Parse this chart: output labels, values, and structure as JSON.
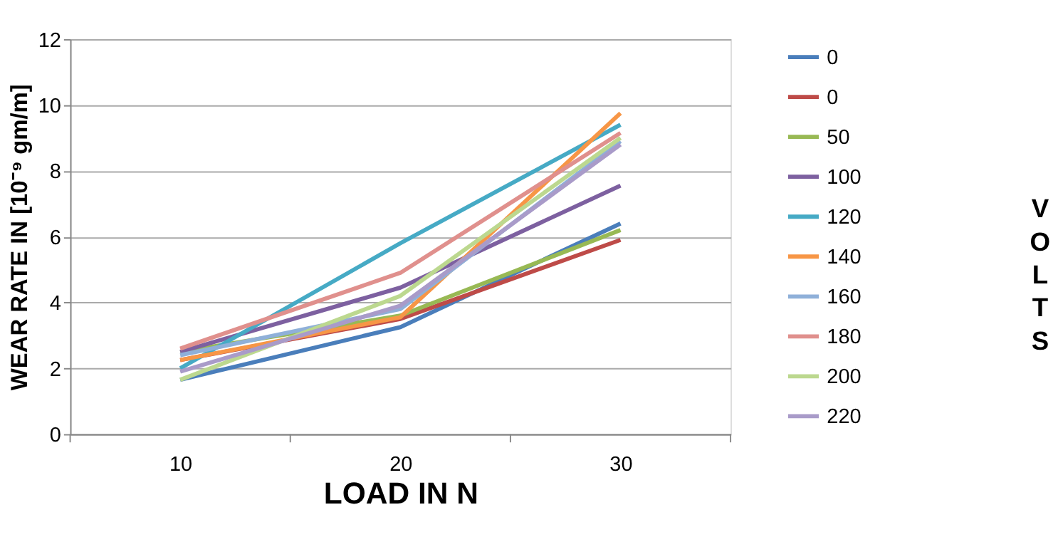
{
  "chart_data": {
    "type": "line",
    "xlabel": "LOAD IN N",
    "ylabel": "WEAR RATE IN [10⁻⁹ gm/m]",
    "legend_title": "VOLTS",
    "categories": [
      "10",
      "20",
      "30"
    ],
    "ylim": [
      0,
      12
    ],
    "yticks": [
      0,
      2,
      4,
      6,
      8,
      10,
      12
    ],
    "grid": "y",
    "legend": "right",
    "marker": "none",
    "line_style": "solid",
    "series": [
      {
        "name": "0",
        "color": "#4a7ebb",
        "values": [
          1.65,
          3.25,
          6.4
        ]
      },
      {
        "name": "0",
        "color": "#be4b48",
        "values": [
          2.25,
          3.5,
          5.9
        ]
      },
      {
        "name": "50",
        "color": "#98b954",
        "values": [
          2.5,
          3.6,
          6.2
        ]
      },
      {
        "name": "100",
        "color": "#7d60a0",
        "values": [
          2.5,
          4.45,
          7.55
        ]
      },
      {
        "name": "120",
        "color": "#46aac5",
        "values": [
          2.0,
          5.8,
          9.4
        ]
      },
      {
        "name": "140",
        "color": "#f79646",
        "values": [
          2.25,
          3.55,
          9.75
        ]
      },
      {
        "name": "160",
        "color": "#8fb0d9",
        "values": [
          2.4,
          3.8,
          8.9
        ]
      },
      {
        "name": "180",
        "color": "#e0908d",
        "values": [
          2.6,
          4.9,
          9.15
        ]
      },
      {
        "name": "200",
        "color": "#bcd88f",
        "values": [
          1.65,
          4.2,
          9.0
        ]
      },
      {
        "name": "220",
        "color": "#a99bc9",
        "values": [
          1.9,
          3.9,
          8.8
        ]
      }
    ]
  }
}
